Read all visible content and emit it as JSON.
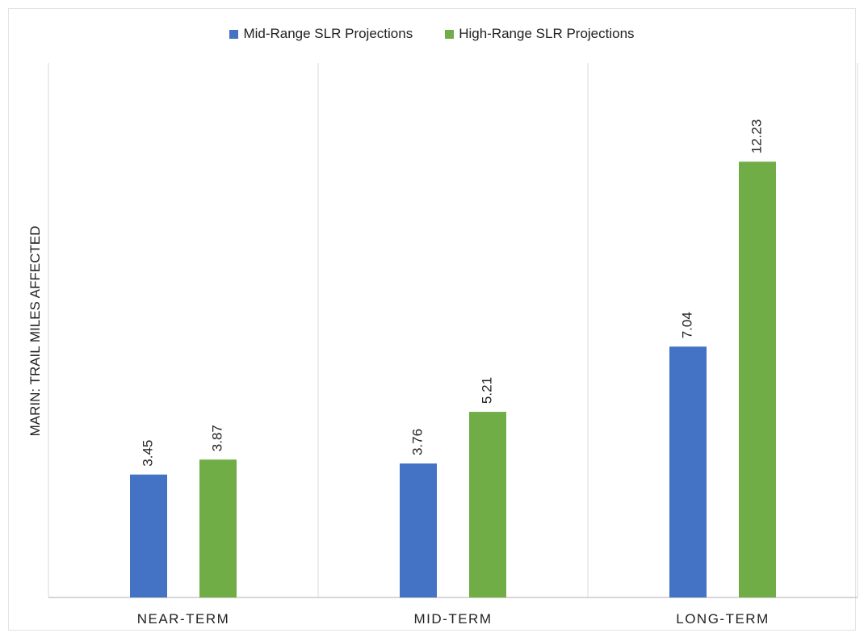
{
  "chart_data": {
    "type": "bar",
    "categories": [
      "NEAR-TERM",
      "MID-TERM",
      "LONG-TERM"
    ],
    "series": [
      {
        "name": "Mid-Range SLR Projections",
        "color": "#4472c4",
        "values": [
          3.45,
          3.76,
          7.04
        ]
      },
      {
        "name": "High-Range SLR Projections",
        "color": "#70ad47",
        "values": [
          3.87,
          5.21,
          12.23
        ]
      }
    ],
    "data_labels": [
      [
        "3.45",
        "3.76",
        "7.04"
      ],
      [
        "3.87",
        "5.21",
        "12.23"
      ]
    ],
    "title": "",
    "xlabel": "",
    "ylabel": "MARIN: TRAIL MILES AFFECTED",
    "ylim": [
      0,
      15
    ],
    "grid": "vertical category separators",
    "legend": "top-center"
  }
}
